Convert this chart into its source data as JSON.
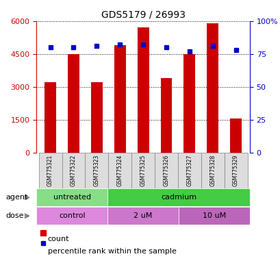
{
  "title": "GDS5179 / 26993",
  "samples": [
    "GSM775321",
    "GSM775322",
    "GSM775323",
    "GSM775324",
    "GSM775325",
    "GSM775326",
    "GSM775327",
    "GSM775328",
    "GSM775329"
  ],
  "counts": [
    3200,
    4500,
    3200,
    4900,
    5700,
    3400,
    4500,
    5900,
    1550
  ],
  "percentile_ranks": [
    80,
    80,
    81,
    82,
    82,
    80,
    77,
    81,
    78
  ],
  "ylim_left": [
    0,
    6000
  ],
  "ylim_right": [
    0,
    100
  ],
  "yticks_left": [
    0,
    1500,
    3000,
    4500,
    6000
  ],
  "yticks_right": [
    0,
    25,
    50,
    75,
    100
  ],
  "ytick_right_labels": [
    "0",
    "25",
    "50",
    "75",
    "100%"
  ],
  "bar_color": "#cc0000",
  "dot_color": "#0000cc",
  "agent_groups": [
    {
      "label": "untreated",
      "start": 0,
      "end": 3,
      "color": "#88dd88"
    },
    {
      "label": "cadmium",
      "start": 3,
      "end": 9,
      "color": "#44cc44"
    }
  ],
  "dose_groups": [
    {
      "label": "control",
      "start": 0,
      "end": 3,
      "color": "#dd88dd"
    },
    {
      "label": "2 uM",
      "start": 3,
      "end": 6,
      "color": "#cc77cc"
    },
    {
      "label": "10 uM",
      "start": 6,
      "end": 9,
      "color": "#bb66bb"
    }
  ],
  "legend_count_label": "count",
  "legend_pct_label": "percentile rank within the sample",
  "tick_label_color_left": "#cc0000",
  "tick_label_color_right": "#0000cc",
  "background_color": "#ffffff",
  "sample_bg_color": "#dddddd"
}
